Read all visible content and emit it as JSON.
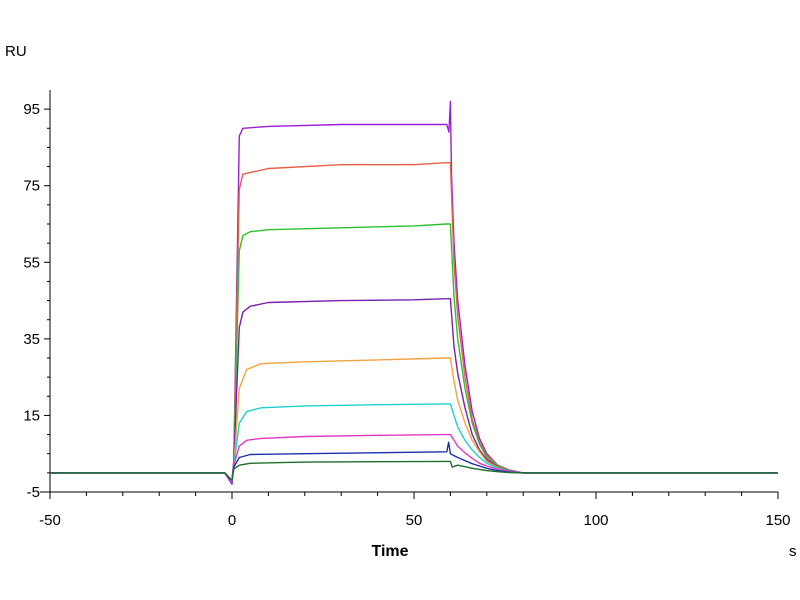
{
  "chart_data": {
    "type": "line",
    "title": "",
    "xlabel": "Time",
    "x_unit": "s",
    "ylabel": "RU",
    "xlim": [
      -50,
      150
    ],
    "ylim": [
      -5,
      100
    ],
    "xticks": [
      -50,
      0,
      50,
      100,
      150
    ],
    "yticks": [
      -5,
      15,
      35,
      55,
      75,
      95
    ],
    "grid": false,
    "legend": "none",
    "series": [
      {
        "color": "#9a1fd6",
        "values": [
          [
            -50,
            0
          ],
          [
            -2,
            0
          ],
          [
            0,
            -3
          ],
          [
            0.5,
            3
          ],
          [
            2,
            88
          ],
          [
            3,
            90
          ],
          [
            10,
            90.5
          ],
          [
            30,
            91
          ],
          [
            50,
            91
          ],
          [
            59,
            91
          ],
          [
            59.6,
            89
          ],
          [
            60,
            97
          ],
          [
            60.3,
            78
          ],
          [
            61,
            60
          ],
          [
            62,
            45
          ],
          [
            64,
            28
          ],
          [
            66,
            16
          ],
          [
            68,
            9
          ],
          [
            70,
            5
          ],
          [
            73,
            2
          ],
          [
            76,
            0.8
          ],
          [
            80,
            0
          ],
          [
            100,
            0
          ],
          [
            150,
            0
          ]
        ]
      },
      {
        "color": "#e8604a",
        "values": [
          [
            -50,
            0
          ],
          [
            -2,
            0
          ],
          [
            0,
            -2
          ],
          [
            0.5,
            3
          ],
          [
            2,
            74
          ],
          [
            3,
            78
          ],
          [
            10,
            79.5
          ],
          [
            30,
            80.5
          ],
          [
            50,
            80.5
          ],
          [
            59,
            81
          ],
          [
            60,
            81
          ],
          [
            61,
            55
          ],
          [
            62,
            41
          ],
          [
            64,
            25
          ],
          [
            66,
            14
          ],
          [
            68,
            8
          ],
          [
            70,
            4.5
          ],
          [
            73,
            2
          ],
          [
            76,
            0.8
          ],
          [
            80,
            0
          ],
          [
            100,
            0
          ],
          [
            150,
            0
          ]
        ]
      },
      {
        "color": "#2ec12e",
        "values": [
          [
            -50,
            0
          ],
          [
            -2,
            0
          ],
          [
            0,
            -2
          ],
          [
            0.5,
            3
          ],
          [
            2,
            58
          ],
          [
            3,
            62
          ],
          [
            5,
            63
          ],
          [
            10,
            63.5
          ],
          [
            30,
            64
          ],
          [
            50,
            64.5
          ],
          [
            59,
            65
          ],
          [
            60,
            65
          ],
          [
            61,
            46
          ],
          [
            62,
            35
          ],
          [
            64,
            22
          ],
          [
            66,
            13
          ],
          [
            68,
            7.5
          ],
          [
            70,
            4
          ],
          [
            73,
            1.8
          ],
          [
            76,
            0.7
          ],
          [
            80,
            0
          ],
          [
            100,
            0
          ],
          [
            150,
            0
          ]
        ]
      },
      {
        "color": "#7a1fb0",
        "values": [
          [
            -50,
            0
          ],
          [
            -2,
            0
          ],
          [
            0,
            -2
          ],
          [
            0.5,
            3
          ],
          [
            2,
            38
          ],
          [
            3,
            42
          ],
          [
            5,
            43.5
          ],
          [
            10,
            44.5
          ],
          [
            30,
            45
          ],
          [
            50,
            45.2
          ],
          [
            59,
            45.5
          ],
          [
            60,
            45.5
          ],
          [
            61,
            33
          ],
          [
            62,
            26
          ],
          [
            64,
            17
          ],
          [
            66,
            10
          ],
          [
            68,
            6
          ],
          [
            70,
            3.5
          ],
          [
            73,
            1.5
          ],
          [
            76,
            0.6
          ],
          [
            80,
            0
          ],
          [
            100,
            0
          ],
          [
            150,
            0
          ]
        ]
      },
      {
        "color": "#f0a43a",
        "values": [
          [
            -50,
            0
          ],
          [
            -2,
            0
          ],
          [
            0,
            -2
          ],
          [
            0.5,
            2
          ],
          [
            2,
            22
          ],
          [
            4,
            27
          ],
          [
            8,
            28.5
          ],
          [
            20,
            29
          ],
          [
            40,
            29.5
          ],
          [
            59,
            30
          ],
          [
            60,
            30
          ],
          [
            61,
            24
          ],
          [
            62,
            19
          ],
          [
            64,
            13
          ],
          [
            66,
            8.5
          ],
          [
            68,
            5.5
          ],
          [
            70,
            3
          ],
          [
            73,
            1.4
          ],
          [
            76,
            0.5
          ],
          [
            80,
            0
          ],
          [
            100,
            0
          ],
          [
            150,
            0
          ]
        ]
      },
      {
        "color": "#1fd0d0",
        "values": [
          [
            -50,
            0
          ],
          [
            -2,
            0
          ],
          [
            0,
            -2
          ],
          [
            0.5,
            2
          ],
          [
            2,
            13
          ],
          [
            4,
            16
          ],
          [
            8,
            17
          ],
          [
            20,
            17.5
          ],
          [
            40,
            17.8
          ],
          [
            59,
            18
          ],
          [
            60,
            18
          ],
          [
            61,
            15
          ],
          [
            62,
            12
          ],
          [
            64,
            8.5
          ],
          [
            66,
            6
          ],
          [
            68,
            4
          ],
          [
            70,
            2.5
          ],
          [
            73,
            1.2
          ],
          [
            76,
            0.5
          ],
          [
            80,
            0
          ],
          [
            100,
            0
          ],
          [
            150,
            0
          ]
        ]
      },
      {
        "color": "#e038c8",
        "values": [
          [
            -50,
            0
          ],
          [
            -2,
            0
          ],
          [
            0,
            -2
          ],
          [
            0.5,
            2
          ],
          [
            2,
            7
          ],
          [
            4,
            8.5
          ],
          [
            8,
            9
          ],
          [
            20,
            9.5
          ],
          [
            40,
            9.8
          ],
          [
            59,
            10
          ],
          [
            60,
            10
          ],
          [
            61,
            8.5
          ],
          [
            62,
            7
          ],
          [
            64,
            5.2
          ],
          [
            66,
            3.8
          ],
          [
            68,
            2.5
          ],
          [
            70,
            1.8
          ],
          [
            73,
            1
          ],
          [
            76,
            0.4
          ],
          [
            80,
            0
          ],
          [
            100,
            0
          ],
          [
            150,
            0
          ]
        ]
      },
      {
        "color": "#1d2fa8",
        "values": [
          [
            -50,
            0
          ],
          [
            -2,
            0
          ],
          [
            0,
            -2
          ],
          [
            0.5,
            1.5
          ],
          [
            2,
            4
          ],
          [
            5,
            4.8
          ],
          [
            20,
            5
          ],
          [
            59,
            5.5
          ],
          [
            59.5,
            8
          ],
          [
            60,
            5
          ],
          [
            61,
            4.5
          ],
          [
            62,
            4
          ],
          [
            64,
            3.2
          ],
          [
            66,
            2.4
          ],
          [
            68,
            1.8
          ],
          [
            70,
            1.2
          ],
          [
            73,
            0.6
          ],
          [
            76,
            0.2
          ],
          [
            80,
            0
          ],
          [
            100,
            0
          ],
          [
            150,
            0
          ]
        ]
      },
      {
        "color": "#1f6e2e",
        "values": [
          [
            -50,
            0
          ],
          [
            -2,
            0
          ],
          [
            0,
            -2
          ],
          [
            0.5,
            1
          ],
          [
            2,
            2
          ],
          [
            5,
            2.5
          ],
          [
            20,
            2.8
          ],
          [
            59,
            3
          ],
          [
            60,
            3
          ],
          [
            60.5,
            1.5
          ],
          [
            62,
            2
          ],
          [
            64,
            1.6
          ],
          [
            66,
            1.2
          ],
          [
            68,
            0.9
          ],
          [
            70,
            0.6
          ],
          [
            73,
            0.3
          ],
          [
            76,
            0.1
          ],
          [
            80,
            0
          ],
          [
            100,
            0
          ],
          [
            150,
            0
          ]
        ]
      }
    ]
  }
}
